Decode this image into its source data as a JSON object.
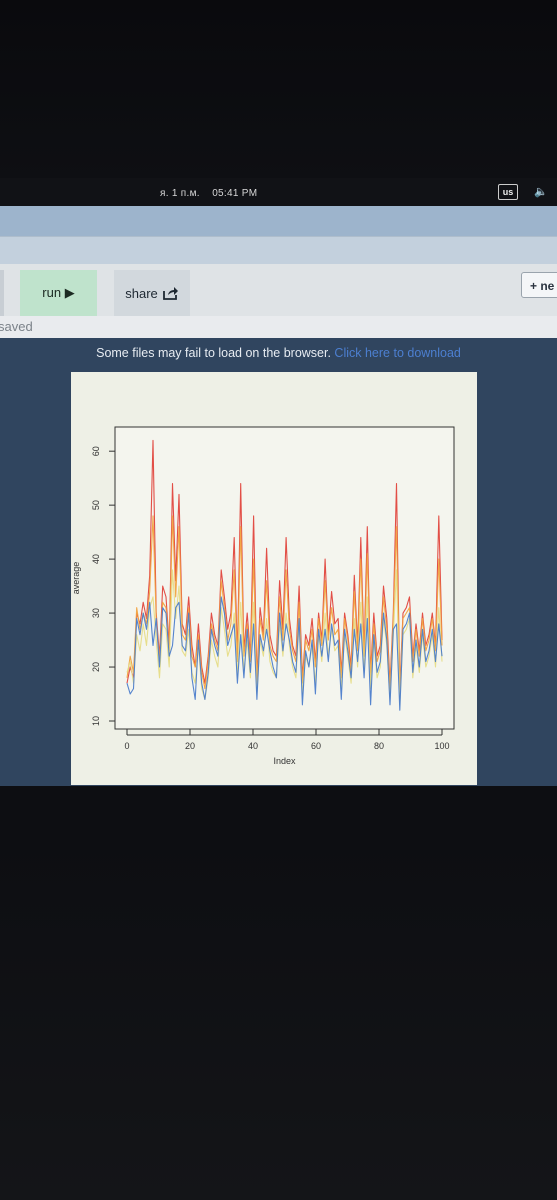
{
  "taskbar": {
    "date": "я. 1 п.м.",
    "time": "05:41 PM",
    "language": "us"
  },
  "toolbar": {
    "run_label": "run ▶",
    "share_label": "share",
    "new_label": "+ ne"
  },
  "status": {
    "saved_text": "saved"
  },
  "notice": {
    "text": "Some files may fail to load on the browser. ",
    "link_text": "Click here to download"
  },
  "chart_data": {
    "type": "line",
    "xlabel": "Index",
    "ylabel": "average",
    "xlim": [
      0,
      100
    ],
    "ylim": [
      10,
      63
    ],
    "x_ticks": [
      0,
      20,
      40,
      60,
      80,
      100
    ],
    "y_ticks": [
      10,
      20,
      30,
      40,
      50,
      60
    ],
    "grid": false,
    "series": [
      {
        "color": "#e0443c",
        "values": [
          17,
          20,
          18,
          30,
          28,
          32,
          29,
          37,
          62,
          30,
          22,
          35,
          33,
          24,
          54,
          36,
          52,
          28,
          26,
          33,
          24,
          20,
          28,
          20,
          17,
          22,
          30,
          26,
          24,
          38,
          33,
          27,
          30,
          44,
          22,
          54,
          23,
          30,
          22,
          48,
          18,
          31,
          26,
          42,
          26,
          23,
          22,
          36,
          27,
          44,
          29,
          24,
          22,
          35,
          18,
          26,
          24,
          29,
          21,
          30,
          25,
          40,
          26,
          34,
          28,
          29,
          19,
          30,
          26,
          20,
          37,
          24,
          44,
          23,
          46,
          19,
          30,
          22,
          24,
          35,
          29,
          17,
          30,
          54,
          16,
          30,
          31,
          33,
          22,
          28,
          23,
          30,
          24,
          26,
          30,
          24,
          48,
          25
        ]
      },
      {
        "color": "#f1a340",
        "values": [
          18,
          22,
          19,
          31,
          27,
          30,
          28,
          34,
          48,
          29,
          21,
          32,
          31,
          23,
          48,
          33,
          46,
          26,
          25,
          31,
          22,
          20,
          26,
          19,
          16,
          21,
          28,
          25,
          23,
          36,
          31,
          25,
          28,
          38,
          21,
          46,
          22,
          28,
          21,
          40,
          17,
          29,
          25,
          36,
          24,
          22,
          21,
          33,
          25,
          38,
          27,
          23,
          21,
          32,
          17,
          25,
          23,
          27,
          20,
          29,
          24,
          36,
          25,
          31,
          26,
          27,
          18,
          29,
          25,
          19,
          34,
          23,
          40,
          22,
          41,
          18,
          28,
          21,
          23,
          33,
          27,
          16,
          29,
          46,
          15,
          29,
          30,
          31,
          21,
          27,
          22,
          29,
          23,
          25,
          29,
          23,
          40,
          24
        ]
      },
      {
        "color": "#e6dc86",
        "values": [
          19,
          21,
          17,
          26,
          23,
          28,
          24,
          31,
          33,
          25,
          18,
          28,
          27,
          20,
          38,
          29,
          35,
          23,
          22,
          27,
          19,
          17,
          24,
          16,
          14,
          18,
          25,
          22,
          20,
          31,
          27,
          22,
          24,
          30,
          18,
          32,
          19,
          25,
          18,
          32,
          15,
          25,
          22,
          29,
          21,
          19,
          18,
          28,
          22,
          30,
          24,
          20,
          18,
          28,
          15,
          22,
          20,
          24,
          17,
          26,
          21,
          30,
          22,
          27,
          23,
          24,
          16,
          26,
          22,
          17,
          29,
          20,
          32,
          19,
          33,
          16,
          25,
          18,
          20,
          29,
          24,
          14,
          26,
          38,
          13,
          26,
          27,
          29,
          18,
          24,
          19,
          26,
          20,
          22,
          26,
          20,
          31,
          21
        ]
      },
      {
        "color": "#4c7dcb",
        "values": [
          17,
          15,
          16,
          29,
          26,
          30,
          27,
          32,
          24,
          29,
          20,
          31,
          30,
          22,
          24,
          31,
          32,
          24,
          23,
          30,
          18,
          14,
          25,
          17,
          14,
          19,
          27,
          24,
          22,
          33,
          30,
          24,
          26,
          28,
          17,
          26,
          18,
          27,
          19,
          28,
          14,
          26,
          23,
          27,
          23,
          20,
          18,
          30,
          23,
          28,
          25,
          21,
          19,
          29,
          13,
          23,
          20,
          25,
          15,
          27,
          22,
          27,
          21,
          28,
          24,
          25,
          14,
          27,
          23,
          18,
          27,
          21,
          28,
          18,
          29,
          13,
          26,
          19,
          21,
          30,
          25,
          13,
          27,
          28,
          12,
          27,
          28,
          30,
          19,
          25,
          20,
          27,
          21,
          23,
          27,
          21,
          28,
          22
        ]
      }
    ]
  }
}
